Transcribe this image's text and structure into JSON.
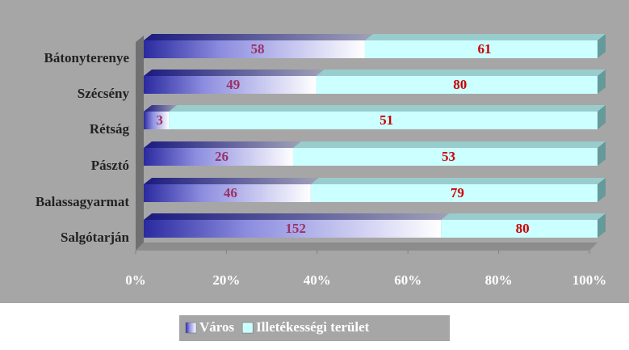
{
  "chart_data": {
    "type": "bar",
    "orientation": "horizontal",
    "stacked": "percent",
    "categories": [
      "Bátonyterenye",
      "Szécsény",
      "Rétság",
      "Pásztó",
      "Balassagyarmat",
      "Salgótarján"
    ],
    "series": [
      {
        "name": "Város",
        "color": "#333399",
        "values": [
          58,
          49,
          3,
          26,
          46,
          152
        ]
      },
      {
        "name": "Illetékességi terület",
        "color": "#ccffff",
        "values": [
          61,
          80,
          51,
          53,
          79,
          80
        ]
      }
    ],
    "xlim": [
      0,
      100
    ],
    "xticks": [
      {
        "value": 0,
        "label": "0%"
      },
      {
        "value": 20,
        "label": "20%"
      },
      {
        "value": 40,
        "label": "40%"
      },
      {
        "value": 60,
        "label": "60%"
      },
      {
        "value": 80,
        "label": "80%"
      },
      {
        "value": 100,
        "label": "100%"
      }
    ],
    "legend": "bottom"
  }
}
